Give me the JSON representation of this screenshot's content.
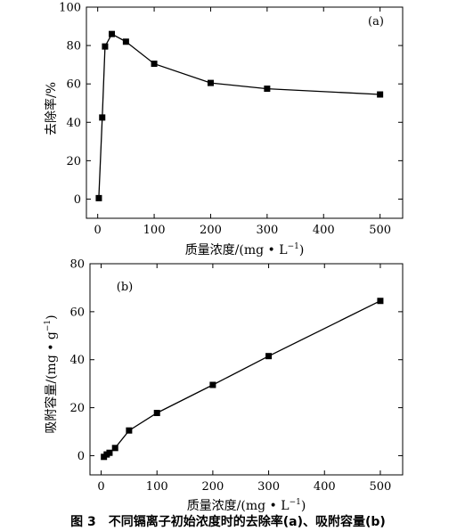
{
  "chart_data": [
    {
      "type": "line",
      "panel_label": "(a)",
      "xlabel": "质量浓度/(mg • L",
      "xlabel_sup": "−1",
      "xlabel_tail": ")",
      "ylabel": "去除率/%",
      "xlim": [
        -20,
        540
      ],
      "ylim": [
        -10,
        100
      ],
      "xticks": [
        0,
        100,
        200,
        300,
        400,
        500
      ],
      "yticks": [
        0,
        20,
        40,
        60,
        80,
        100
      ],
      "marker": "square",
      "grid": false,
      "series": [
        {
          "x": [
            2,
            8,
            13,
            25,
            50,
            100,
            200,
            300,
            500
          ],
          "y": [
            0.5,
            42.5,
            79.5,
            86,
            82,
            70.5,
            60.5,
            57.5,
            54.5
          ]
        }
      ]
    },
    {
      "type": "line",
      "panel_label": "(b)",
      "xlabel": "质量浓度/(mg • L",
      "xlabel_sup": "−1",
      "xlabel_tail": ")",
      "ylabel": "吸附容量/(mg • g",
      "ylabel_sup": "−1",
      "ylabel_tail": ")",
      "xlim": [
        -20,
        540
      ],
      "ylim": [
        -8,
        80
      ],
      "xticks": [
        0,
        100,
        200,
        300,
        400,
        500
      ],
      "yticks": [
        0,
        20,
        40,
        60,
        80
      ],
      "marker": "square",
      "grid": false,
      "series": [
        {
          "x": [
            5,
            10,
            15,
            25,
            50,
            100,
            200,
            300,
            500
          ],
          "y": [
            -0.5,
            0.5,
            1.2,
            3.2,
            10.5,
            17.8,
            29.5,
            41.5,
            64.5
          ]
        }
      ]
    }
  ],
  "caption": "图 3　不同镉离子初始浓度时的去除率(a)、吸附容量(b)"
}
